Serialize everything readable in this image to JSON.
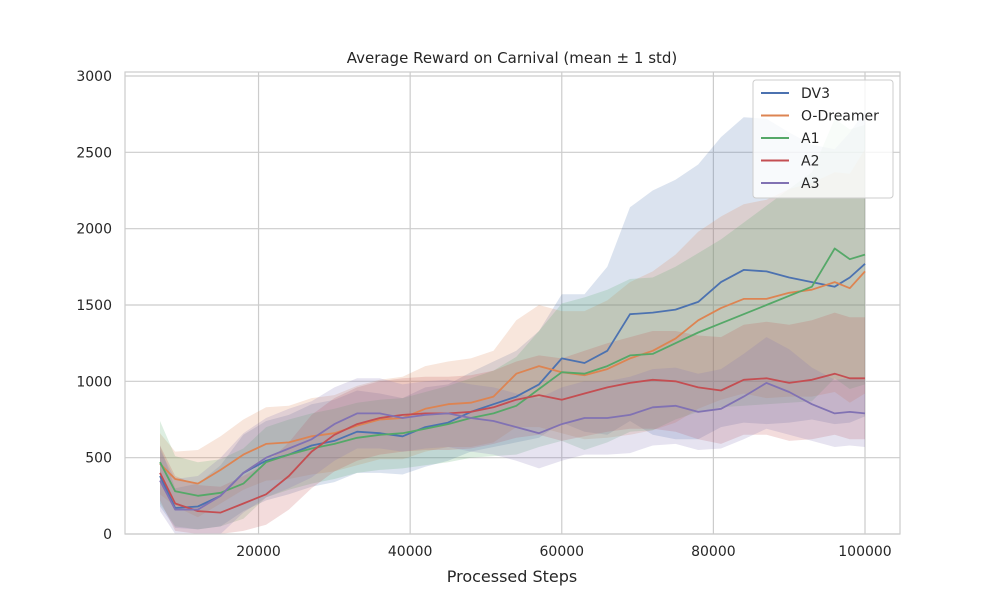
{
  "chart_data": {
    "type": "line",
    "title": "Average Reward on Carnival (mean ± 1 std)",
    "xlabel": "Processed Steps",
    "ylabel": "",
    "xlim": [
      0,
      100000
    ],
    "ylim": [
      0,
      3000
    ],
    "xticks": [
      20000,
      40000,
      60000,
      80000,
      100000
    ],
    "yticks": [
      0,
      500,
      1000,
      1500,
      2000,
      2500,
      3000
    ],
    "grid": true,
    "legend_position": "top-right",
    "x": [
      7000,
      9000,
      12000,
      15000,
      18000,
      21000,
      24000,
      27000,
      30000,
      33000,
      36000,
      39000,
      42000,
      45000,
      48000,
      51000,
      54000,
      57000,
      60000,
      63000,
      66000,
      69000,
      72000,
      75000,
      78000,
      81000,
      84000,
      87000,
      90000,
      93000,
      96000,
      98000,
      100000
    ],
    "series": [
      {
        "name": "DV3",
        "color": "#4c72b0",
        "values": [
          380,
          170,
          180,
          250,
          400,
          480,
          520,
          580,
          610,
          670,
          660,
          640,
          700,
          730,
          800,
          850,
          900,
          980,
          1150,
          1120,
          1200,
          1440,
          1450,
          1470,
          1520,
          1650,
          1730,
          1720,
          1680,
          1650,
          1620,
          1680,
          1770
        ],
        "std": [
          200,
          130,
          150,
          200,
          250,
          260,
          260,
          270,
          270,
          270,
          260,
          250,
          260,
          250,
          260,
          280,
          300,
          350,
          420,
          450,
          550,
          700,
          800,
          850,
          900,
          950,
          1000,
          1000,
          950,
          900,
          900,
          950,
          1000
        ]
      },
      {
        "name": "O-Dreamer",
        "color": "#dd8452",
        "values": [
          460,
          360,
          330,
          420,
          520,
          590,
          600,
          640,
          660,
          710,
          750,
          760,
          820,
          850,
          860,
          900,
          1050,
          1100,
          1060,
          1040,
          1080,
          1150,
          1200,
          1280,
          1400,
          1480,
          1540,
          1540,
          1580,
          1600,
          1650,
          1610,
          1720
        ],
        "std": [
          200,
          180,
          220,
          220,
          230,
          240,
          240,
          250,
          250,
          260,
          260,
          270,
          280,
          280,
          290,
          300,
          350,
          400,
          400,
          420,
          450,
          500,
          520,
          550,
          580,
          600,
          620,
          650,
          680,
          700,
          720,
          750,
          800
        ]
      },
      {
        "name": "A1",
        "color": "#55a868",
        "values": [
          470,
          280,
          250,
          270,
          330,
          470,
          520,
          560,
          590,
          630,
          650,
          660,
          690,
          720,
          760,
          790,
          840,
          950,
          1060,
          1050,
          1100,
          1170,
          1180,
          1250,
          1320,
          1380,
          1440,
          1500,
          1560,
          1620,
          1870,
          1800,
          1830
        ],
        "std": [
          270,
          230,
          220,
          220,
          230,
          230,
          230,
          230,
          230,
          230,
          230,
          230,
          240,
          250,
          260,
          280,
          320,
          380,
          450,
          500,
          500,
          500,
          500,
          500,
          520,
          550,
          600,
          650,
          700,
          750,
          850,
          850,
          850
        ]
      },
      {
        "name": "A2",
        "color": "#c44e52",
        "values": [
          400,
          200,
          150,
          140,
          200,
          260,
          380,
          540,
          650,
          720,
          760,
          780,
          790,
          790,
          800,
          830,
          880,
          910,
          880,
          920,
          960,
          990,
          1010,
          1000,
          960,
          940,
          1010,
          1020,
          990,
          1010,
          1050,
          1020,
          1020
        ],
        "std": [
          180,
          180,
          170,
          170,
          180,
          200,
          220,
          240,
          240,
          240,
          240,
          240,
          240,
          240,
          240,
          240,
          250,
          260,
          270,
          280,
          290,
          300,
          320,
          330,
          340,
          350,
          360,
          370,
          380,
          390,
          400,
          400,
          400
        ]
      },
      {
        "name": "A3",
        "color": "#8172b3",
        "values": [
          350,
          160,
          160,
          250,
          400,
          500,
          560,
          620,
          720,
          790,
          790,
          760,
          780,
          790,
          760,
          740,
          700,
          660,
          720,
          760,
          760,
          780,
          830,
          840,
          800,
          820,
          900,
          990,
          930,
          850,
          790,
          800,
          790
        ],
        "std": [
          200,
          200,
          220,
          250,
          260,
          260,
          260,
          250,
          240,
          230,
          230,
          220,
          220,
          220,
          220,
          220,
          220,
          230,
          240,
          240,
          240,
          250,
          250,
          250,
          250,
          260,
          280,
          300,
          280,
          240,
          220,
          220,
          220
        ]
      }
    ]
  }
}
